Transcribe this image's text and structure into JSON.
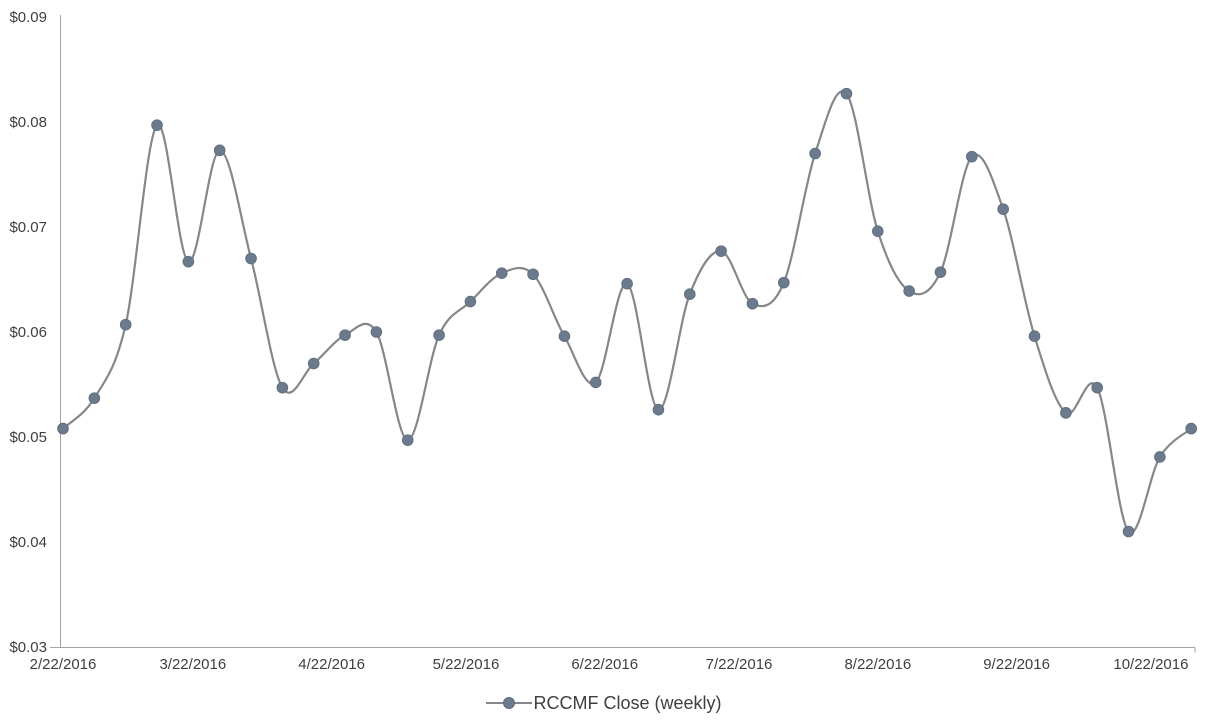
{
  "chart_data": {
    "type": "line",
    "title": "",
    "xlabel": "",
    "ylabel": "",
    "grid": false,
    "smooth_line": true,
    "marker": "circle",
    "legend_position": "bottom-center",
    "ylim": [
      0.03,
      0.09
    ],
    "y_tick_values": [
      0.03,
      0.04,
      0.05,
      0.06,
      0.07,
      0.08,
      0.09
    ],
    "y_tick_labels": [
      "$0.03",
      "$0.04",
      "$0.05",
      "$0.06",
      "$0.07",
      "$0.08",
      "$0.09"
    ],
    "x_tick_labels": [
      "2/22/2016",
      "3/22/2016",
      "4/22/2016",
      "5/22/2016",
      "6/22/2016",
      "7/22/2016",
      "8/22/2016",
      "9/22/2016",
      "10/22/2016"
    ],
    "series": [
      {
        "name": "RCCMF Close (weekly)",
        "x": [
          "2/22/2016",
          "2/29/2016",
          "3/7/2016",
          "3/14/2016",
          "3/21/2016",
          "3/28/2016",
          "4/4/2016",
          "4/11/2016",
          "4/18/2016",
          "4/25/2016",
          "5/2/2016",
          "5/9/2016",
          "5/16/2016",
          "5/23/2016",
          "5/30/2016",
          "6/6/2016",
          "6/13/2016",
          "6/20/2016",
          "6/27/2016",
          "7/4/2016",
          "7/11/2016",
          "7/18/2016",
          "7/25/2016",
          "8/1/2016",
          "8/8/2016",
          "8/15/2016",
          "8/22/2016",
          "8/29/2016",
          "9/5/2016",
          "9/12/2016",
          "9/19/2016",
          "9/26/2016",
          "10/3/2016",
          "10/10/2016",
          "10/17/2016",
          "10/24/2016",
          "10/31/2016"
        ],
        "values": [
          0.0508,
          0.0537,
          0.0607,
          0.0797,
          0.0667,
          0.0773,
          0.067,
          0.0547,
          0.057,
          0.0597,
          0.06,
          0.0497,
          0.0597,
          0.0629,
          0.0656,
          0.0655,
          0.0596,
          0.0552,
          0.0646,
          0.0526,
          0.0636,
          0.0677,
          0.0627,
          0.0647,
          0.077,
          0.0827,
          0.0696,
          0.0639,
          0.0657,
          0.0767,
          0.0717,
          0.0596,
          0.0523,
          0.0547,
          0.041,
          0.0481,
          0.0508
        ]
      }
    ],
    "colors": {
      "line": "#85878a",
      "marker": "#6b7a8d",
      "marker_border": "#5f6d7d",
      "axis": "#a3a3a3",
      "label_text": "#3f3f3f"
    }
  },
  "legend": {
    "label": "RCCMF Close (weekly)"
  }
}
